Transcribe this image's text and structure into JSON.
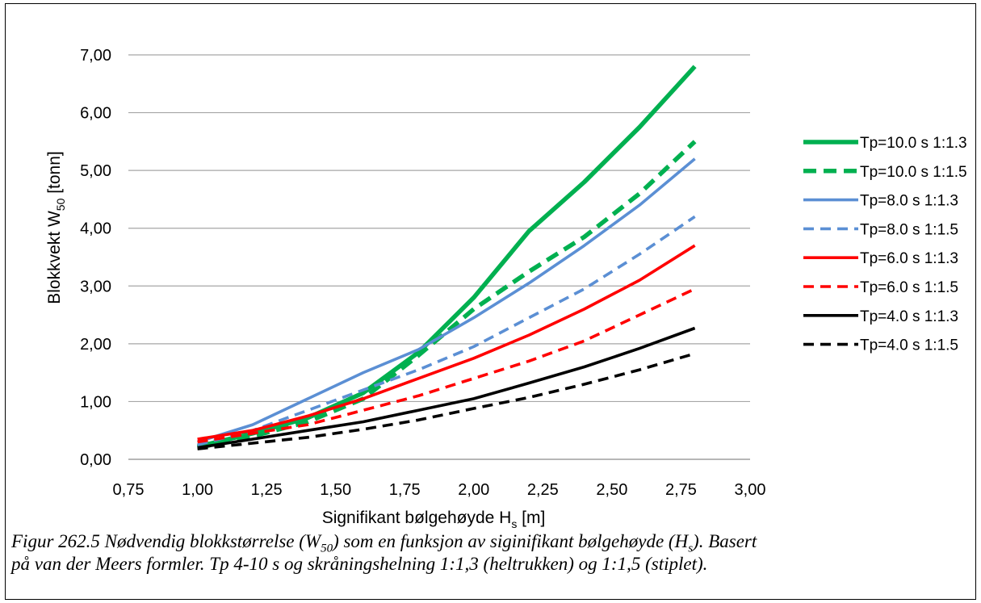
{
  "chart_data": {
    "type": "line",
    "title": "",
    "xlabel": {
      "main": "Signifikant bølgehøyde H",
      "sub": "s",
      "unit": " [m]"
    },
    "ylabel": {
      "main": "Blokkvekt W",
      "sub": "50",
      "unit": " [tonn]"
    },
    "xlim": [
      0.75,
      3.0
    ],
    "ylim": [
      0.0,
      7.0
    ],
    "xticks": [
      "0,75",
      "1,00",
      "1,25",
      "1,50",
      "1,75",
      "2,00",
      "2,25",
      "2,50",
      "2,75",
      "3,00"
    ],
    "yticks": [
      "0,00",
      "1,00",
      "2,00",
      "3,00",
      "4,00",
      "5,00",
      "6,00",
      "7,00"
    ],
    "grid": "horizontal",
    "legend_position": "right",
    "series": [
      {
        "name": "Tp=10.0 s 1:1.3",
        "color": "#00B050",
        "style": "solid",
        "weight": "heavy",
        "x": [
          1.0,
          1.2,
          1.4,
          1.6,
          1.8,
          2.0,
          2.2,
          2.4,
          2.6,
          2.8
        ],
        "y": [
          0.22,
          0.45,
          0.72,
          1.15,
          1.85,
          2.8,
          3.95,
          4.8,
          5.75,
          6.8
        ]
      },
      {
        "name": "Tp=10.0 s 1:1.5",
        "color": "#00B050",
        "style": "dashed",
        "weight": "heavy",
        "x": [
          1.0,
          1.2,
          1.4,
          1.6,
          1.8,
          2.0,
          2.2,
          2.4,
          2.6,
          2.8
        ],
        "y": [
          0.2,
          0.4,
          0.65,
          1.05,
          1.8,
          2.6,
          3.25,
          3.85,
          4.6,
          5.5
        ]
      },
      {
        "name": "Tp=8.0 s 1:1.3",
        "color": "#5B8FD4",
        "style": "solid",
        "weight": "normal",
        "x": [
          1.0,
          1.2,
          1.4,
          1.6,
          1.8,
          2.0,
          2.2,
          2.4,
          2.6,
          2.8
        ],
        "y": [
          0.3,
          0.6,
          1.05,
          1.5,
          1.9,
          2.45,
          3.05,
          3.7,
          4.4,
          5.2
        ]
      },
      {
        "name": "Tp=8.0 s 1:1.5",
        "color": "#5B8FD4",
        "style": "dashed",
        "weight": "normal",
        "x": [
          1.0,
          1.2,
          1.4,
          1.6,
          1.8,
          2.0,
          2.2,
          2.4,
          2.6,
          2.8
        ],
        "y": [
          0.25,
          0.5,
          0.85,
          1.2,
          1.55,
          1.95,
          2.45,
          2.95,
          3.55,
          4.2
        ]
      },
      {
        "name": "Tp=6.0 s 1:1.3",
        "color": "#FF0000",
        "style": "solid",
        "weight": "normal",
        "x": [
          1.0,
          1.2,
          1.4,
          1.6,
          1.8,
          2.0,
          2.2,
          2.4,
          2.6,
          2.8
        ],
        "y": [
          0.35,
          0.5,
          0.75,
          1.05,
          1.4,
          1.75,
          2.15,
          2.6,
          3.1,
          3.7
        ]
      },
      {
        "name": "Tp=6.0 s 1:1.5",
        "color": "#FF0000",
        "style": "dashed",
        "weight": "normal",
        "x": [
          1.0,
          1.2,
          1.4,
          1.6,
          1.8,
          2.0,
          2.2,
          2.4,
          2.6,
          2.8
        ],
        "y": [
          0.3,
          0.45,
          0.6,
          0.85,
          1.1,
          1.4,
          1.7,
          2.05,
          2.5,
          2.95
        ]
      },
      {
        "name": "Tp=4.0 s 1:1.3",
        "color": "#000000",
        "style": "solid",
        "weight": "normal",
        "x": [
          1.0,
          1.2,
          1.4,
          1.6,
          1.8,
          2.0,
          2.2,
          2.4,
          2.6,
          2.8
        ],
        "y": [
          0.2,
          0.35,
          0.5,
          0.65,
          0.85,
          1.05,
          1.32,
          1.6,
          1.92,
          2.27
        ]
      },
      {
        "name": "Tp=4.0 s 1:1.5",
        "color": "#000000",
        "style": "dashed",
        "weight": "normal",
        "x": [
          1.0,
          1.2,
          1.4,
          1.6,
          1.8,
          2.0,
          2.2,
          2.4,
          2.6,
          2.8
        ],
        "y": [
          0.18,
          0.28,
          0.38,
          0.52,
          0.68,
          0.88,
          1.07,
          1.3,
          1.55,
          1.83
        ]
      }
    ]
  },
  "caption": {
    "line1": {
      "t1": "Figur 262.5 Nødvendig blokkstørrelse (W",
      "s1": "50",
      "t2": ") som en funksjon av siginifikant bølgehøyde (H",
      "s2": "s",
      "t3": "). Basert"
    },
    "line2": "på van der Meers formler. Tp 4-10 s og skråningshelning 1:1,3 (heltrukken) og 1:1,5 (stiplet)."
  }
}
